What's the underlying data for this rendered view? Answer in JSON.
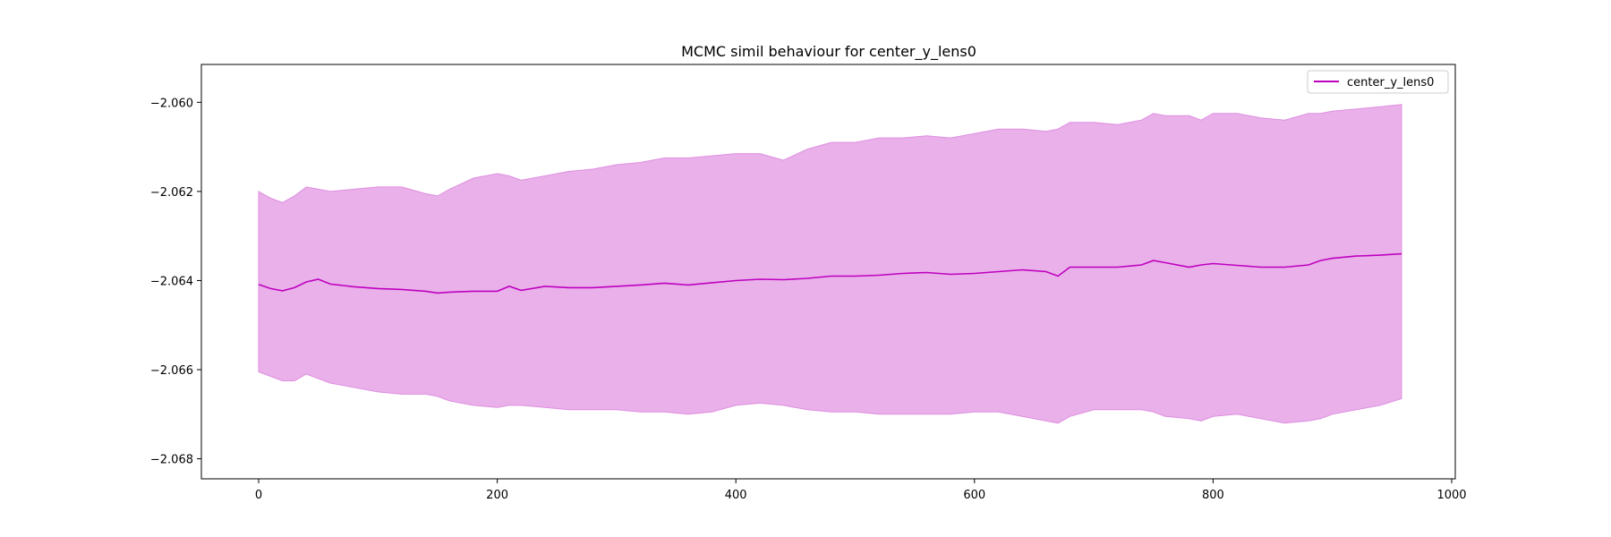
{
  "chart_data": {
    "type": "line",
    "title": "MCMC simil behaviour for center_y_lens0",
    "xlabel": "",
    "ylabel": "",
    "xlim": [
      -48,
      1003
    ],
    "ylim": [
      -2.06845,
      -2.05915
    ],
    "x_ticks": [
      0,
      200,
      400,
      600,
      800,
      1000
    ],
    "x_tick_labels": [
      "0",
      "200",
      "400",
      "600",
      "800",
      "1000"
    ],
    "y_ticks": [
      -2.068,
      -2.066,
      -2.064,
      -2.062,
      -2.06
    ],
    "y_tick_labels": [
      "−2.068",
      "−2.066",
      "−2.064",
      "−2.062",
      "−2.060"
    ],
    "grid": false,
    "legend_position": "top-right",
    "series": [
      {
        "name": "center_y_lens0",
        "color": "#bf00bf",
        "band_color": "#e9b0ea",
        "band_edge_color": "#df8fe0",
        "x": [
          0,
          10,
          20,
          30,
          40,
          50,
          60,
          80,
          100,
          120,
          140,
          150,
          160,
          180,
          200,
          210,
          220,
          240,
          260,
          280,
          300,
          320,
          340,
          360,
          380,
          400,
          420,
          440,
          460,
          480,
          500,
          520,
          540,
          560,
          580,
          600,
          620,
          640,
          660,
          670,
          680,
          700,
          720,
          740,
          750,
          760,
          780,
          790,
          800,
          820,
          840,
          860,
          880,
          890,
          900,
          920,
          940,
          958
        ],
        "mean": [
          -2.06409,
          -2.06418,
          -2.06423,
          -2.06416,
          -2.06403,
          -2.06397,
          -2.06408,
          -2.06414,
          -2.06418,
          -2.0642,
          -2.06424,
          -2.06428,
          -2.06426,
          -2.06424,
          -2.06424,
          -2.06413,
          -2.06422,
          -2.06413,
          -2.06416,
          -2.06416,
          -2.06413,
          -2.0641,
          -2.06406,
          -2.0641,
          -2.06405,
          -2.064,
          -2.06397,
          -2.06398,
          -2.06395,
          -2.0639,
          -2.0639,
          -2.06388,
          -2.06384,
          -2.06382,
          -2.06386,
          -2.06384,
          -2.0638,
          -2.06376,
          -2.0638,
          -2.0639,
          -2.0637,
          -2.0637,
          -2.0637,
          -2.06365,
          -2.06355,
          -2.0636,
          -2.0637,
          -2.06365,
          -2.06362,
          -2.06366,
          -2.0637,
          -2.0637,
          -2.06365,
          -2.06355,
          -2.0635,
          -2.06345,
          -2.06343,
          -2.0634
        ],
        "upper": [
          -2.062,
          -2.06215,
          -2.06225,
          -2.0621,
          -2.0619,
          -2.06195,
          -2.062,
          -2.06195,
          -2.0619,
          -2.0619,
          -2.06205,
          -2.0621,
          -2.06195,
          -2.0617,
          -2.0616,
          -2.06165,
          -2.06175,
          -2.06165,
          -2.06155,
          -2.0615,
          -2.0614,
          -2.06135,
          -2.06125,
          -2.06125,
          -2.0612,
          -2.06115,
          -2.06115,
          -2.0613,
          -2.06105,
          -2.0609,
          -2.0609,
          -2.0608,
          -2.0608,
          -2.06075,
          -2.0608,
          -2.0607,
          -2.0606,
          -2.0606,
          -2.06065,
          -2.0606,
          -2.06045,
          -2.06045,
          -2.0605,
          -2.0604,
          -2.06025,
          -2.0603,
          -2.0603,
          -2.0604,
          -2.06025,
          -2.06025,
          -2.06035,
          -2.0604,
          -2.06025,
          -2.06025,
          -2.0602,
          -2.06015,
          -2.0601,
          -2.06005
        ],
        "lower": [
          -2.06605,
          -2.06615,
          -2.06625,
          -2.06625,
          -2.0661,
          -2.0662,
          -2.0663,
          -2.0664,
          -2.0665,
          -2.06655,
          -2.06655,
          -2.0666,
          -2.0667,
          -2.0668,
          -2.06685,
          -2.0668,
          -2.0668,
          -2.06685,
          -2.0669,
          -2.0669,
          -2.0669,
          -2.06695,
          -2.06695,
          -2.067,
          -2.06695,
          -2.0668,
          -2.06675,
          -2.0668,
          -2.0669,
          -2.06695,
          -2.06695,
          -2.067,
          -2.067,
          -2.067,
          -2.067,
          -2.06695,
          -2.06695,
          -2.06705,
          -2.06715,
          -2.0672,
          -2.06705,
          -2.0669,
          -2.0669,
          -2.0669,
          -2.06695,
          -2.06705,
          -2.0671,
          -2.06715,
          -2.06705,
          -2.067,
          -2.0671,
          -2.0672,
          -2.06715,
          -2.0671,
          -2.067,
          -2.0669,
          -2.0668,
          -2.06665
        ]
      }
    ]
  }
}
